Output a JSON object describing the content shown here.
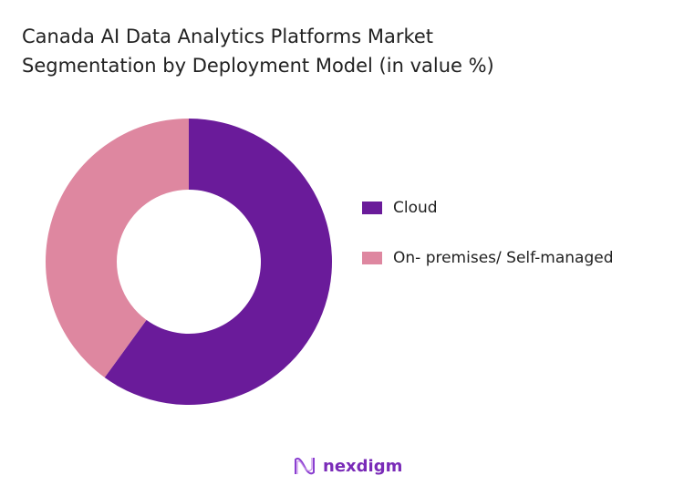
{
  "chart_data": {
    "type": "pie",
    "variant": "donut",
    "title": "Canada AI Data Analytics Platforms Market\nSegmentation by Deployment Model (in value %)",
    "categories": [
      "Cloud",
      "On- premises/ Self-managed"
    ],
    "values": [
      60,
      40
    ],
    "colors": [
      "#6a1b9a",
      "#de87a0"
    ],
    "legend_position": "right"
  },
  "brand": {
    "name": "nexdigm",
    "color": "#7a2bb8"
  }
}
